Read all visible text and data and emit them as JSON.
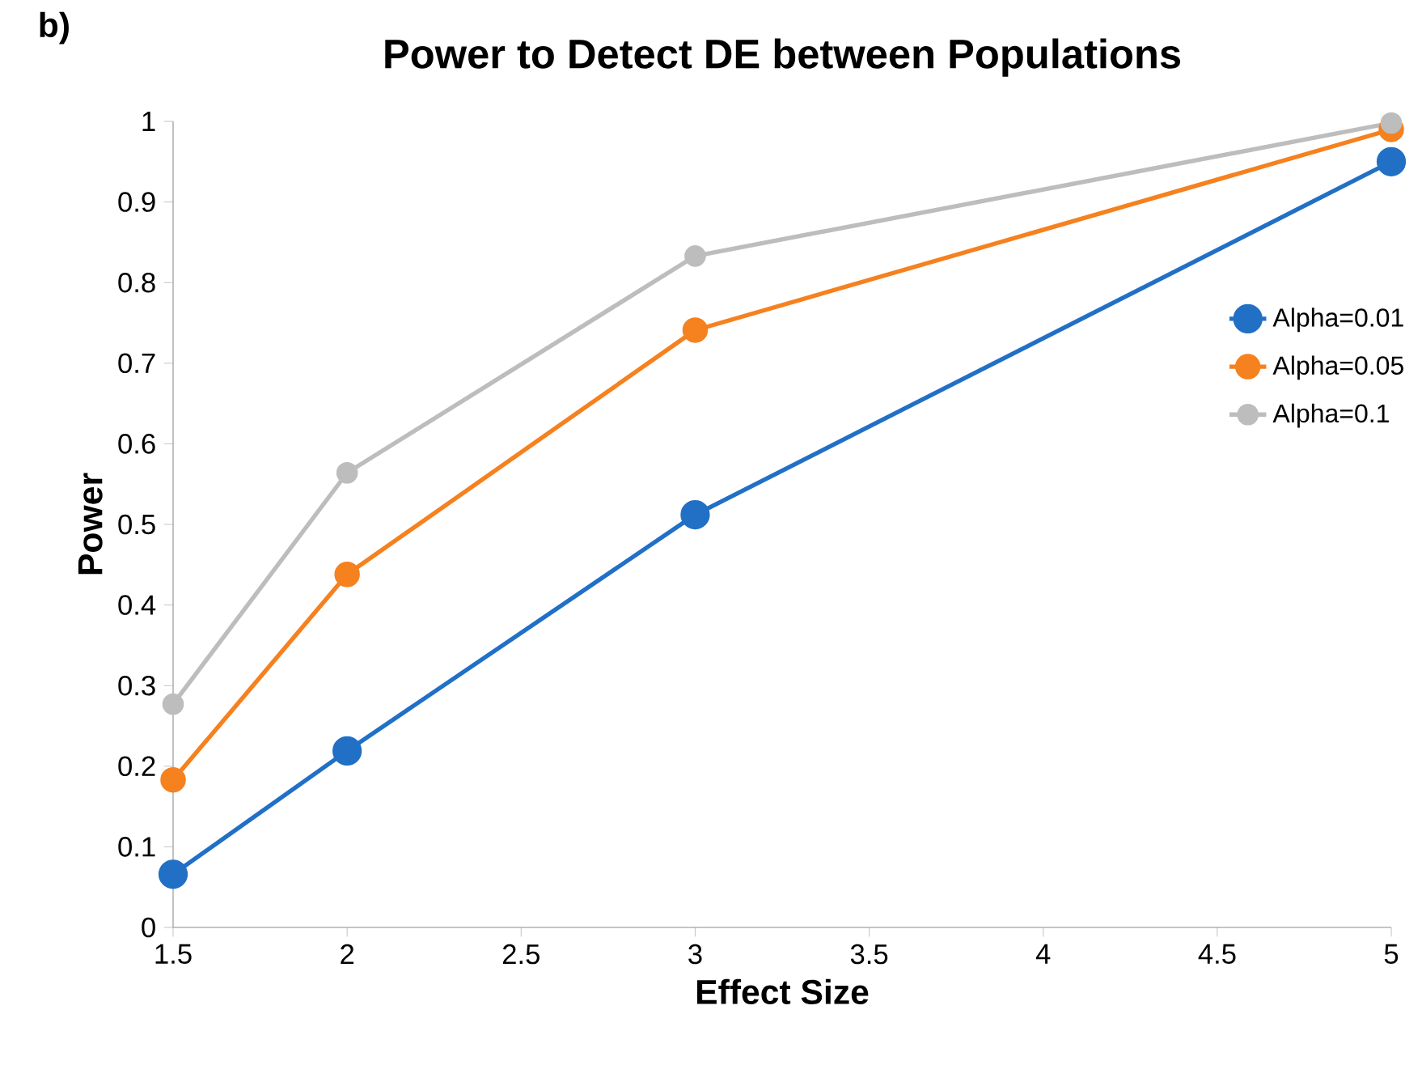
{
  "chart_data": {
    "type": "line",
    "title": "Power to Detect DE between Populations",
    "xlabel": "Effect Size",
    "ylabel": "Power",
    "annotations": [
      "b)"
    ],
    "x": [
      1.5,
      2,
      3,
      5
    ],
    "series": [
      {
        "name": "Alpha=0.01",
        "color": "#2170c6",
        "values": [
          0.066,
          0.219,
          0.512,
          0.95
        ]
      },
      {
        "name": "Alpha=0.05",
        "color": "#f5811f",
        "values": [
          0.183,
          0.438,
          0.741,
          0.99
        ]
      },
      {
        "name": "Alpha=0.1",
        "color": "#bdbdbd",
        "values": [
          0.277,
          0.564,
          0.833,
          0.998
        ]
      }
    ],
    "xlim": [
      1.5,
      5
    ],
    "ylim": [
      0,
      1
    ],
    "xticks": [
      1.5,
      2,
      2.5,
      3,
      3.5,
      4,
      4.5,
      5
    ],
    "yticks": [
      0,
      0.1,
      0.2,
      0.3,
      0.4,
      0.5,
      0.6,
      0.7,
      0.8,
      0.9,
      1
    ],
    "grid": false,
    "legend": "right",
    "marker": "circle",
    "line_style": "solid"
  }
}
